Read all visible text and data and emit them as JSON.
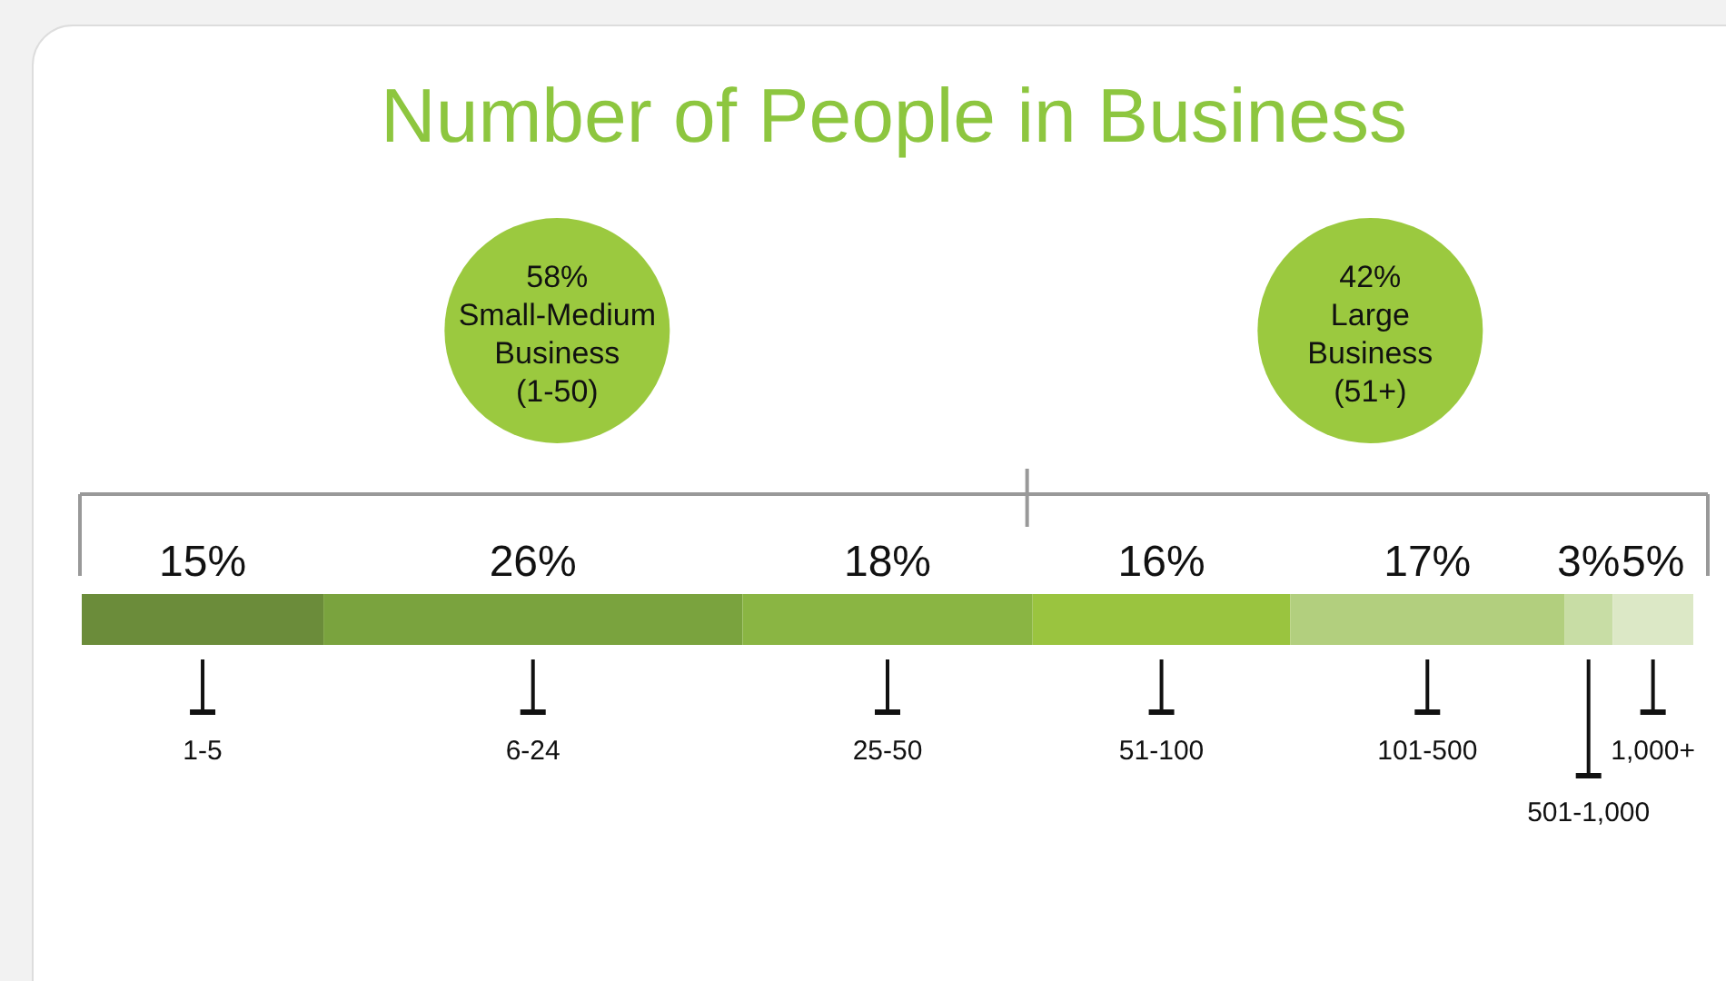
{
  "chart_data": {
    "type": "bar",
    "title": "Number of People in Business",
    "orientation": "horizontal",
    "stacked": true,
    "tick_labels": false,
    "categories": [
      null
    ],
    "series": [
      {
        "name": "1-5",
        "color": "#6b8c3a",
        "values": [
          15
        ],
        "value_labels": [
          "15%"
        ]
      },
      {
        "name": "6-24",
        "color": "#7aa33e",
        "values": [
          26
        ],
        "value_labels": [
          "26%"
        ]
      },
      {
        "name": "25-50",
        "color": "#8ab543",
        "values": [
          18
        ],
        "value_labels": [
          "18%"
        ]
      },
      {
        "name": "51-100",
        "color": "#9ac43f",
        "values": [
          16
        ],
        "value_labels": [
          "16%"
        ]
      },
      {
        "name": "101-500",
        "color": "#b2cf7e",
        "values": [
          17
        ],
        "value_labels": [
          "17%"
        ]
      },
      {
        "name": "501-1,000",
        "color": "#c8dda5",
        "values": [
          3
        ],
        "value_labels": [
          "3%"
        ]
      },
      {
        "name": "1,000+",
        "color": "#dce8c6",
        "values": [
          5
        ],
        "value_labels": [
          "5%"
        ]
      }
    ],
    "annotations": [
      "58%\nSmall-Medium\nBusiness\n(1-50)",
      "42%\nLarge\nBusiness\n(51+)"
    ]
  }
}
